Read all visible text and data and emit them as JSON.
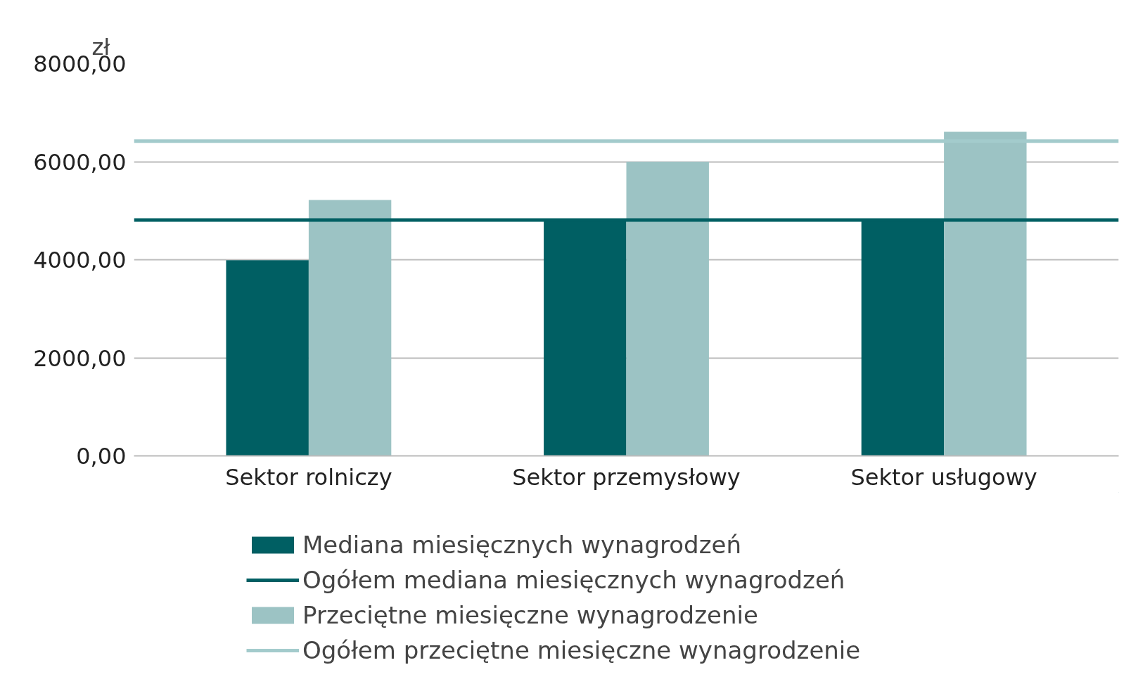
{
  "chart_data": {
    "type": "bar",
    "ylabel": "zł",
    "categories": [
      "Sektor rolniczy",
      "Sektor przemysłowy",
      "Sektor usługowy"
    ],
    "series": [
      {
        "name": "Mediana miesięcznych wynagrodzeń",
        "color": "#005f63",
        "values": [
          3990,
          4820,
          4840
        ]
      },
      {
        "name": "Przeciętne miesięczne wynagrodzenie",
        "color": "#9cc3c4",
        "values": [
          5220,
          6000,
          6610
        ]
      }
    ],
    "ref_lines": [
      {
        "axis": "y",
        "value": 4810,
        "label": "Ogółem mediana miesięcznych wynagrodzeń",
        "color": "#005f63",
        "line_style": "solid"
      },
      {
        "axis": "y",
        "value": 6420,
        "label": "Ogółem przeciętne miesięczne wynagrodzenie",
        "color": "#a3cbcc",
        "line_style": "solid"
      }
    ],
    "ylim": [
      0,
      8000
    ],
    "yticks": [
      {
        "value": 0,
        "label": "0,00"
      },
      {
        "value": 2000,
        "label": "2000,00"
      },
      {
        "value": 4000,
        "label": "4000,00"
      },
      {
        "value": 6000,
        "label": "6000,00"
      },
      {
        "value": 8000,
        "label": "8000,00"
      }
    ],
    "grid": "y",
    "legend": "bottom"
  }
}
